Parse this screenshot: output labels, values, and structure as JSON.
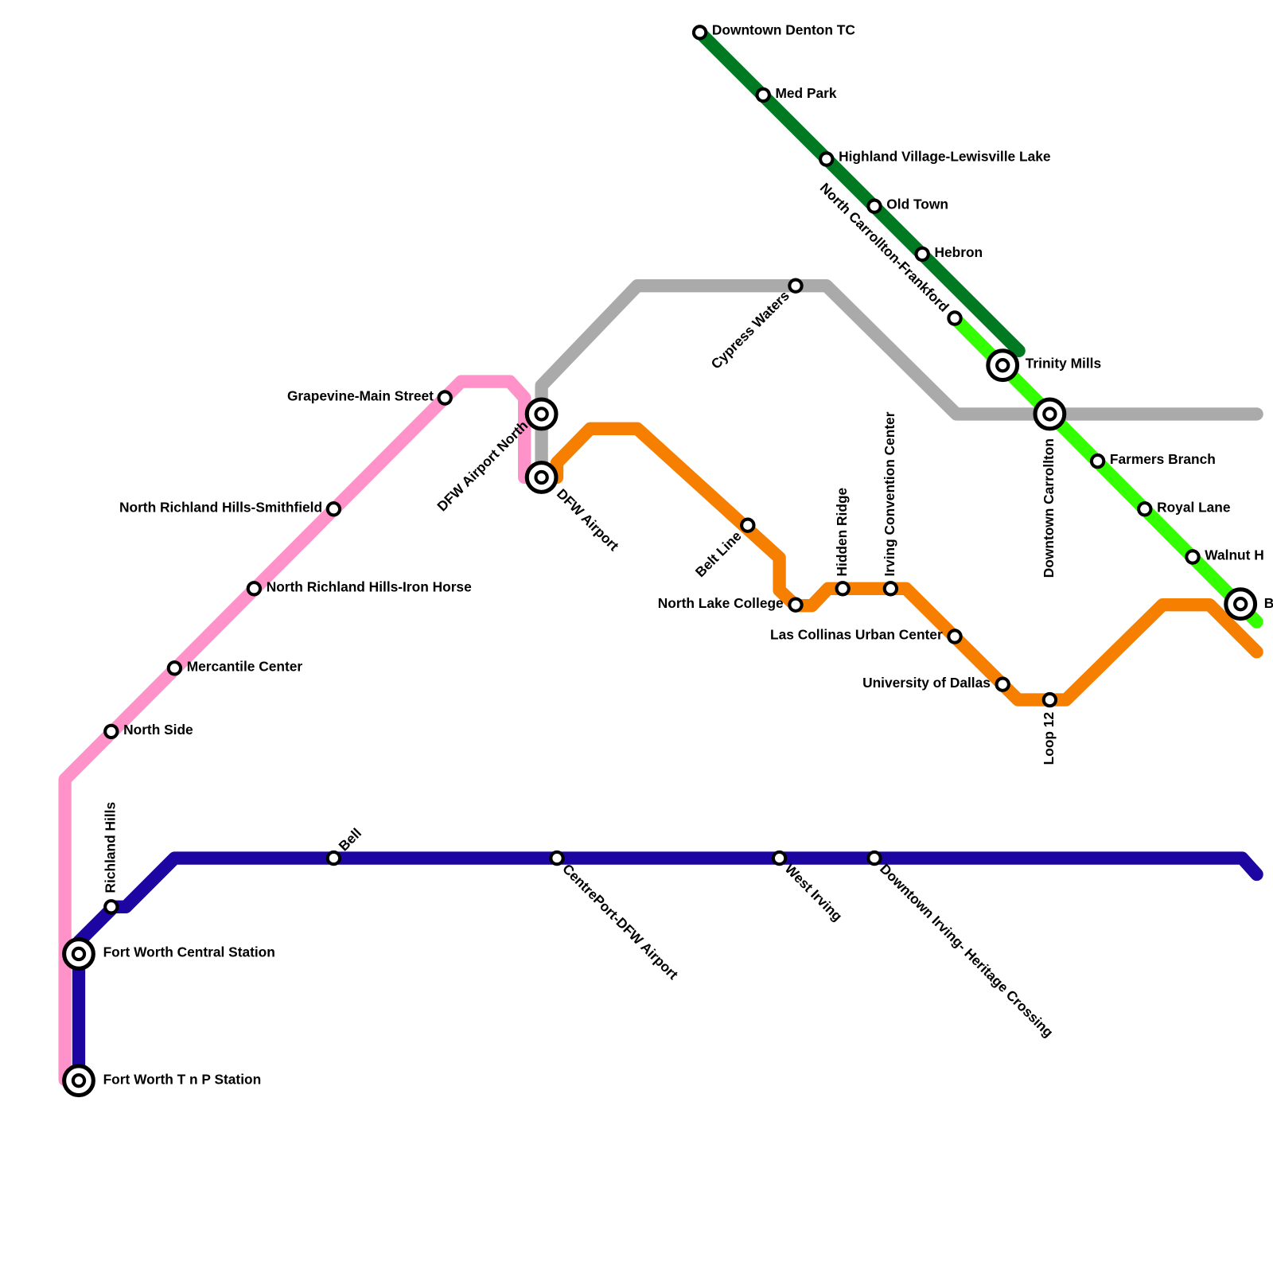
{
  "stations": [
    "Downtown Denton TC",
    "Med Park",
    "Highland Village-Lewisville Lake",
    "Old Town",
    "Hebron",
    "North Carrollton-Frankford",
    "Trinity Mills",
    "Downtown Carrollton",
    "Farmers Branch",
    "Royal Lane",
    "Walnut H",
    "B",
    "Cypress Waters",
    "Grapevine-Main Street",
    "North Richland Hills-Smithfield",
    "North Richland Hills-Iron Horse",
    "Mercantile Center",
    "North Side",
    "Richland Hills",
    "Fort Worth Central Station",
    "Fort Worth T n P Station",
    "Bell",
    "CentrePort-DFW Airport",
    "West Irving",
    "Downtown Irving- Heritage Crossing",
    "DFW Airport North",
    "DFW Airport",
    "Belt Line",
    "North Lake College",
    "Hidden Ridge",
    "Irving Convention Center",
    "Las Collinas Urban Center",
    "University of Dallas",
    "Loop 12"
  ]
}
